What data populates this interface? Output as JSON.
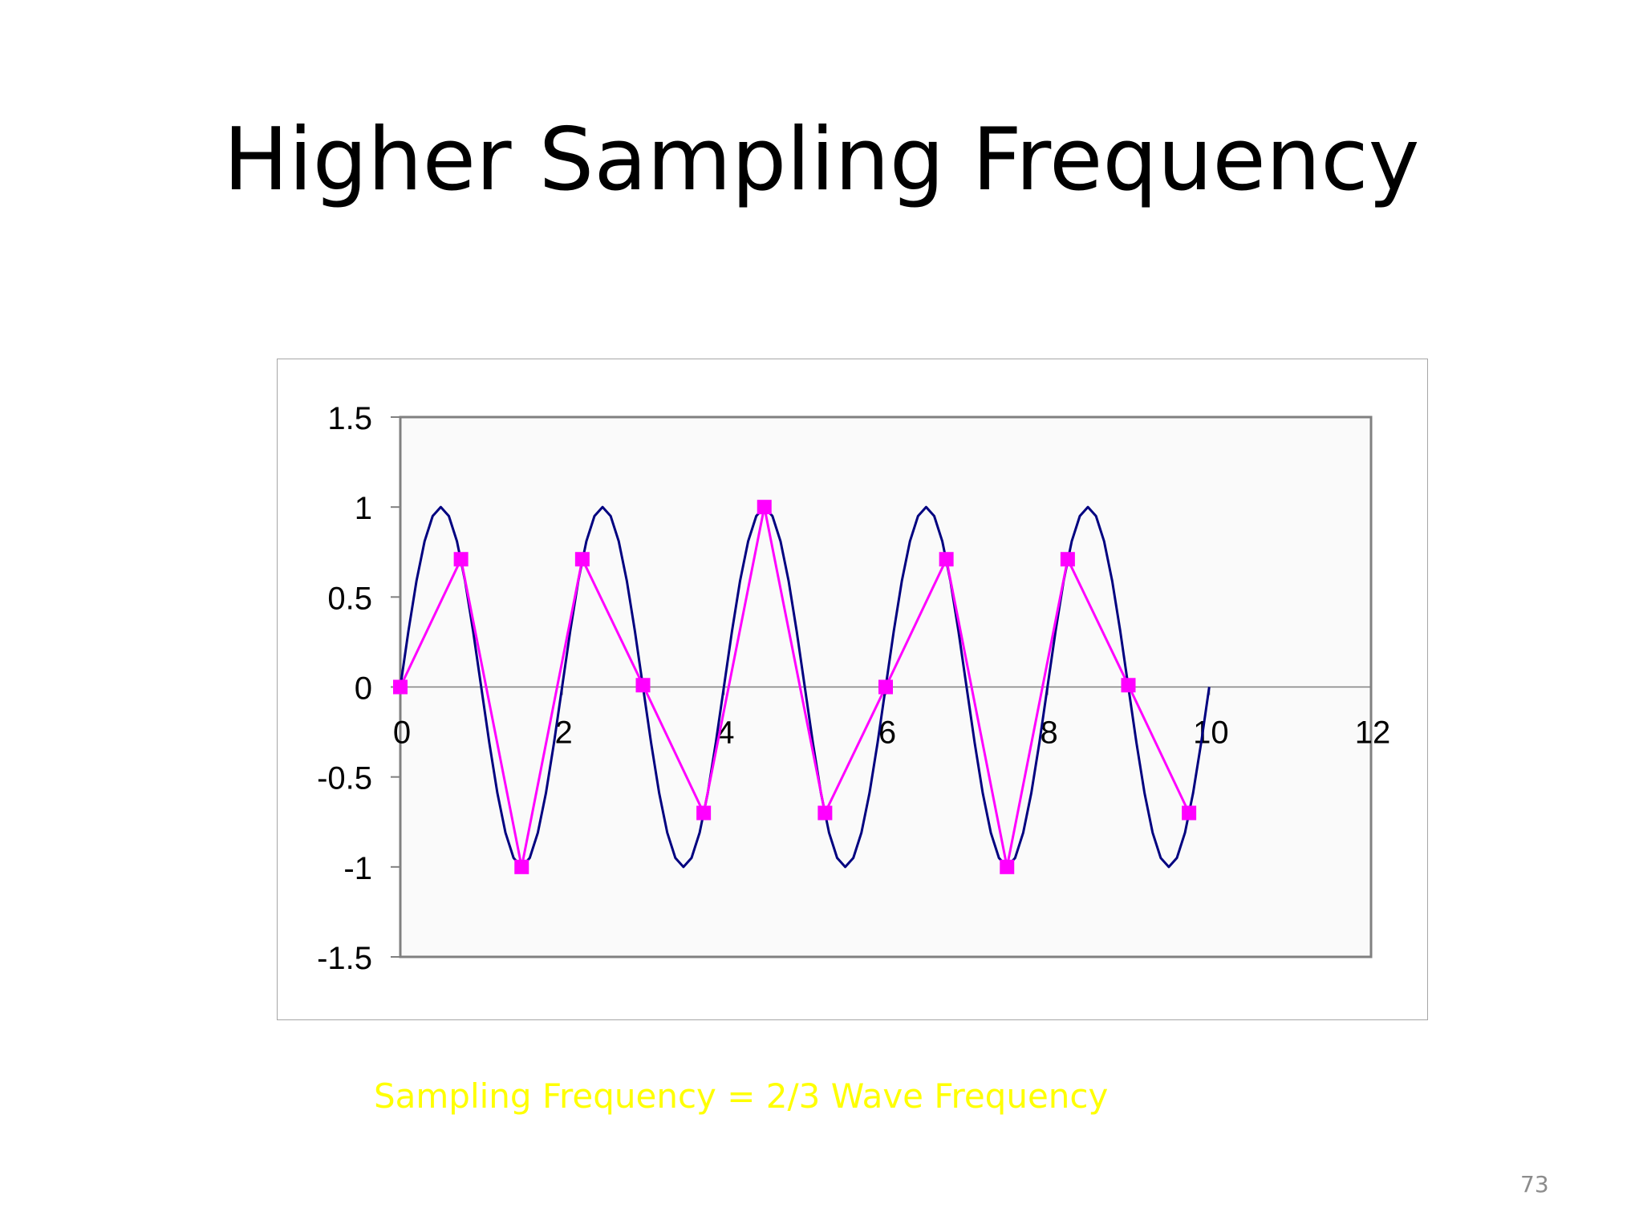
{
  "slide": {
    "title": "Higher Sampling Frequency",
    "caption": "Sampling Frequency = 2/3 Wave Frequency",
    "page_number": "73"
  },
  "colors": {
    "wave": "#000080",
    "samples": "#ff00ff",
    "caption": "#ffff00",
    "plot_area": "#fafafa",
    "axis": "#808080"
  },
  "chart_data": {
    "type": "scatter",
    "title": "",
    "xlabel": "",
    "ylabel": "",
    "xlim": [
      0,
      12
    ],
    "ylim": [
      -1.5,
      1.5
    ],
    "x_ticks": [
      "0",
      "2",
      "4",
      "6",
      "8",
      "10",
      "12"
    ],
    "y_ticks": [
      "1.5",
      "1",
      "0.5",
      "0",
      "-0.5",
      "-1",
      "-1.5"
    ],
    "grid": false,
    "legend": "none",
    "series": [
      {
        "style": "smooth-line",
        "x": [
          0,
          0.1,
          0.2,
          0.3,
          0.4,
          0.5,
          0.6,
          0.7,
          0.8,
          0.9,
          1.0,
          1.1,
          1.2,
          1.3,
          1.4,
          1.5,
          1.6,
          1.7,
          1.8,
          1.9,
          2.0,
          2.1,
          2.2,
          2.3,
          2.4,
          2.5,
          2.6,
          2.7,
          2.8,
          2.9,
          3.0,
          3.1,
          3.2,
          3.3,
          3.4,
          3.5,
          3.6,
          3.7,
          3.8,
          3.9,
          4.0,
          4.1,
          4.2,
          4.3,
          4.4,
          4.5,
          4.6,
          4.7,
          4.8,
          4.9,
          5.0,
          5.1,
          5.2,
          5.3,
          5.4,
          5.5,
          5.6,
          5.7,
          5.8,
          5.9,
          6.0,
          6.1,
          6.2,
          6.3,
          6.4,
          6.5,
          6.6,
          6.7,
          6.8,
          6.9,
          7.0,
          7.1,
          7.2,
          7.3,
          7.4,
          7.5,
          7.6,
          7.7,
          7.8,
          7.9,
          8.0,
          8.1,
          8.2,
          8.3,
          8.4,
          8.5,
          8.6,
          8.7,
          8.8,
          8.9,
          9.0,
          9.1,
          9.2,
          9.3,
          9.4,
          9.5,
          9.6,
          9.7,
          9.8,
          9.9,
          10.0
        ],
        "y": [
          0,
          0.31,
          0.59,
          0.81,
          0.95,
          1.0,
          0.95,
          0.81,
          0.59,
          0.31,
          0,
          -0.31,
          -0.59,
          -0.81,
          -0.95,
          -1.0,
          -0.95,
          -0.81,
          -0.59,
          -0.31,
          0,
          0.31,
          0.59,
          0.81,
          0.95,
          1.0,
          0.95,
          0.81,
          0.59,
          0.31,
          0,
          -0.31,
          -0.59,
          -0.81,
          -0.95,
          -1.0,
          -0.95,
          -0.81,
          -0.59,
          -0.31,
          0,
          0.31,
          0.59,
          0.81,
          0.95,
          1.0,
          0.95,
          0.81,
          0.59,
          0.31,
          0,
          -0.31,
          -0.59,
          -0.81,
          -0.95,
          -1.0,
          -0.95,
          -0.81,
          -0.59,
          -0.31,
          0,
          0.31,
          0.59,
          0.81,
          0.95,
          1.0,
          0.95,
          0.81,
          0.59,
          0.31,
          0,
          -0.31,
          -0.59,
          -0.81,
          -0.95,
          -1.0,
          -0.95,
          -0.81,
          -0.59,
          -0.31,
          0,
          0.31,
          0.59,
          0.81,
          0.95,
          1.0,
          0.95,
          0.81,
          0.59,
          0.31,
          0,
          -0.31,
          -0.59,
          -0.81,
          -0.95,
          -1.0,
          -0.95,
          -0.81,
          -0.59,
          -0.31,
          0
        ]
      },
      {
        "style": "line-square-markers",
        "x": [
          0,
          0.75,
          1.5,
          2.25,
          3.0,
          3.75,
          4.5,
          5.25,
          6.0,
          6.75,
          7.5,
          8.25,
          9.0,
          9.75
        ],
        "y": [
          0,
          0.71,
          -1.0,
          0.71,
          0.01,
          -0.7,
          1.0,
          -0.7,
          0,
          0.71,
          -1.0,
          0.71,
          0.01,
          -0.7
        ]
      }
    ]
  }
}
